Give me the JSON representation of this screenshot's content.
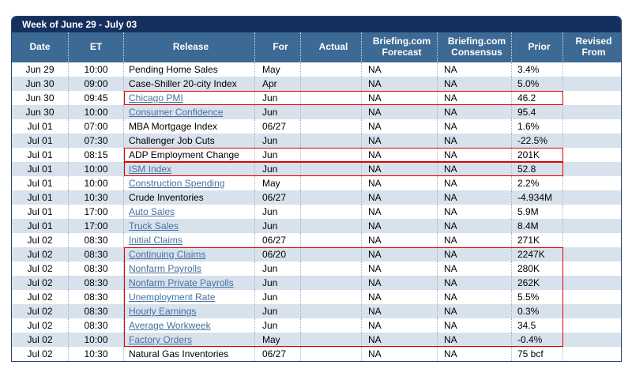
{
  "title": "Week of June 29 - July 03",
  "colors": {
    "title_bar": "#16305E",
    "header": "#3D6A94",
    "row_alt": "#D8E2ED",
    "link": "#44719F",
    "highlight": "#E30000"
  },
  "columns": [
    {
      "key": "date",
      "label": "Date"
    },
    {
      "key": "et",
      "label": "ET"
    },
    {
      "key": "release",
      "label": "Release"
    },
    {
      "key": "for",
      "label": "For"
    },
    {
      "key": "actual",
      "label": "Actual"
    },
    {
      "key": "forecast",
      "label": "Briefing.com Forecast"
    },
    {
      "key": "consensus",
      "label": "Briefing.com Consensus"
    },
    {
      "key": "prior",
      "label": "Prior"
    },
    {
      "key": "revised",
      "label": "Revised From"
    }
  ],
  "rows": [
    {
      "date": "Jun 29",
      "et": "10:00",
      "release": "Pending Home Sales",
      "link": false,
      "for": "May",
      "actual": "",
      "forecast": "NA",
      "consensus": "NA",
      "prior": "3.4%",
      "revised": ""
    },
    {
      "date": "Jun 30",
      "et": "09:00",
      "release": "Case-Shiller 20-city Index",
      "link": false,
      "for": "Apr",
      "actual": "",
      "forecast": "NA",
      "consensus": "NA",
      "prior": "5.0%",
      "revised": ""
    },
    {
      "date": "Jun 30",
      "et": "09:45",
      "release": "Chicago PMI",
      "link": true,
      "for": "Jun",
      "actual": "",
      "forecast": "NA",
      "consensus": "NA",
      "prior": "46.2",
      "revised": ""
    },
    {
      "date": "Jun 30",
      "et": "10:00",
      "release": "Consumer Confidence",
      "link": true,
      "for": "Jun",
      "actual": "",
      "forecast": "NA",
      "consensus": "NA",
      "prior": "95.4",
      "revised": ""
    },
    {
      "date": "Jul 01",
      "et": "07:00",
      "release": "MBA Mortgage Index",
      "link": false,
      "for": "06/27",
      "actual": "",
      "forecast": "NA",
      "consensus": "NA",
      "prior": "1.6%",
      "revised": ""
    },
    {
      "date": "Jul 01",
      "et": "07:30",
      "release": "Challenger Job Cuts",
      "link": false,
      "for": "Jun",
      "actual": "",
      "forecast": "NA",
      "consensus": "NA",
      "prior": "-22.5%",
      "revised": ""
    },
    {
      "date": "Jul 01",
      "et": "08:15",
      "release": "ADP Employment Change",
      "link": false,
      "for": "Jun",
      "actual": "",
      "forecast": "NA",
      "consensus": "NA",
      "prior": "201K",
      "revised": ""
    },
    {
      "date": "Jul 01",
      "et": "10:00",
      "release": "ISM Index",
      "link": true,
      "for": "Jun",
      "actual": "",
      "forecast": "NA",
      "consensus": "NA",
      "prior": "52.8",
      "revised": ""
    },
    {
      "date": "Jul 01",
      "et": "10:00",
      "release": "Construction Spending",
      "link": true,
      "for": "May",
      "actual": "",
      "forecast": "NA",
      "consensus": "NA",
      "prior": "2.2%",
      "revised": ""
    },
    {
      "date": "Jul 01",
      "et": "10:30",
      "release": "Crude Inventories",
      "link": false,
      "for": "06/27",
      "actual": "",
      "forecast": "NA",
      "consensus": "NA",
      "prior": "-4.934M",
      "revised": ""
    },
    {
      "date": "Jul 01",
      "et": "17:00",
      "release": "Auto Sales",
      "link": true,
      "for": "Jun",
      "actual": "",
      "forecast": "NA",
      "consensus": "NA",
      "prior": "5.9M",
      "revised": ""
    },
    {
      "date": "Jul 01",
      "et": "17:00",
      "release": "Truck Sales",
      "link": true,
      "for": "Jun",
      "actual": "",
      "forecast": "NA",
      "consensus": "NA",
      "prior": "8.4M",
      "revised": ""
    },
    {
      "date": "Jul 02",
      "et": "08:30",
      "release": "Initial Claims",
      "link": true,
      "for": "06/27",
      "actual": "",
      "forecast": "NA",
      "consensus": "NA",
      "prior": "271K",
      "revised": ""
    },
    {
      "date": "Jul 02",
      "et": "08:30",
      "release": "Continuing Claims",
      "link": true,
      "for": "06/20",
      "actual": "",
      "forecast": "NA",
      "consensus": "NA",
      "prior": "2247K",
      "revised": ""
    },
    {
      "date": "Jul 02",
      "et": "08:30",
      "release": "Nonfarm Payrolls",
      "link": true,
      "for": "Jun",
      "actual": "",
      "forecast": "NA",
      "consensus": "NA",
      "prior": "280K",
      "revised": ""
    },
    {
      "date": "Jul 02",
      "et": "08:30",
      "release": "Nonfarm Private Payrolls",
      "link": true,
      "for": "Jun",
      "actual": "",
      "forecast": "NA",
      "consensus": "NA",
      "prior": "262K",
      "revised": ""
    },
    {
      "date": "Jul 02",
      "et": "08:30",
      "release": "Unemployment Rate",
      "link": true,
      "for": "Jun",
      "actual": "",
      "forecast": "NA",
      "consensus": "NA",
      "prior": "5.5%",
      "revised": ""
    },
    {
      "date": "Jul 02",
      "et": "08:30",
      "release": "Hourly Earnings",
      "link": true,
      "for": "Jun",
      "actual": "",
      "forecast": "NA",
      "consensus": "NA",
      "prior": "0.3%",
      "revised": ""
    },
    {
      "date": "Jul 02",
      "et": "08:30",
      "release": "Average Workweek",
      "link": true,
      "for": "Jun",
      "actual": "",
      "forecast": "NA",
      "consensus": "NA",
      "prior": "34.5",
      "revised": ""
    },
    {
      "date": "Jul 02",
      "et": "10:00",
      "release": "Factory Orders",
      "link": true,
      "for": "May",
      "actual": "",
      "forecast": "NA",
      "consensus": "NA",
      "prior": "-0.4%",
      "revised": ""
    },
    {
      "date": "Jul 02",
      "et": "10:30",
      "release": "Natural Gas Inventories",
      "link": false,
      "for": "06/27",
      "actual": "",
      "forecast": "NA",
      "consensus": "NA",
      "prior": "75 bcf",
      "revised": ""
    }
  ],
  "highlights": [
    {
      "from": 2,
      "to": 2
    },
    {
      "from": 6,
      "to": 6
    },
    {
      "from": 7,
      "to": 7
    },
    {
      "from": 13,
      "to": 19
    }
  ]
}
